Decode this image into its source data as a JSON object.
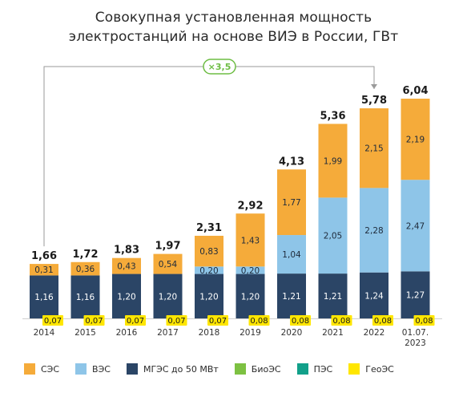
{
  "chart_data": {
    "type": "bar",
    "stacked": true,
    "title": [
      "Совокупная установленная мощность",
      "электростанций на основе ВИЭ в России, ГВт"
    ],
    "categories": [
      [
        "2014"
      ],
      [
        "2015"
      ],
      [
        "2016"
      ],
      [
        "2017"
      ],
      [
        "2018"
      ],
      [
        "2019"
      ],
      [
        "2020"
      ],
      [
        "2021"
      ],
      [
        "2022"
      ],
      [
        "01.07.",
        "2023"
      ]
    ],
    "totals": [
      "1,66",
      "1,72",
      "1,83",
      "1,97",
      "2,31",
      "2,92",
      "4,13",
      "5,36",
      "5,78",
      "6,04"
    ],
    "total_values": [
      1.66,
      1.72,
      1.83,
      1.97,
      2.31,
      2.92,
      4.13,
      5.36,
      5.78,
      6.04
    ],
    "series": [
      {
        "name": "ГеоЭС",
        "color": "#ffe600",
        "values": [
          0.07,
          0.07,
          0.07,
          0.07,
          0.07,
          0.08,
          0.08,
          0.08,
          0.08,
          0.08
        ],
        "labels": [
          "0,07",
          "0,07",
          "0,07",
          "0,07",
          "0,07",
          "0,08",
          "0,08",
          "0,08",
          "0,08",
          "0,08"
        ]
      },
      {
        "name": "МГЭС до 50 МВт",
        "color": "#2b4566",
        "values": [
          1.16,
          1.16,
          1.2,
          1.2,
          1.2,
          1.2,
          1.21,
          1.21,
          1.24,
          1.27
        ],
        "labels": [
          "1,16",
          "1,16",
          "1,20",
          "1,20",
          "1,20",
          "1,20",
          "1,21",
          "1,21",
          "1,24",
          "1,27"
        ]
      },
      {
        "name": "ВЭС",
        "color": "#8ec5e8",
        "values": [
          0,
          0,
          0,
          0,
          0.2,
          0.2,
          1.04,
          2.05,
          2.28,
          2.47
        ],
        "labels": [
          "",
          "",
          "",
          "",
          "0,20",
          "0,20",
          "1,04",
          "2,05",
          "2,28",
          "2,47"
        ]
      },
      {
        "name": "СЭС",
        "color": "#f5ab3a",
        "values": [
          0.31,
          0.36,
          0.43,
          0.54,
          0.83,
          1.43,
          1.77,
          1.99,
          2.15,
          2.19
        ],
        "labels": [
          "0,31",
          "0,36",
          "0,43",
          "0,54",
          "0,83",
          "1,43",
          "1,77",
          "1,99",
          "2,15",
          "2,19"
        ]
      }
    ],
    "annotation": {
      "text": "×3,5",
      "from_index": 0,
      "to_index": 8
    },
    "legend": [
      {
        "name": "СЭС",
        "color": "#f5ab3a"
      },
      {
        "name": "ВЭС",
        "color": "#8ec5e8"
      },
      {
        "name": "МГЭС до 50 МВт",
        "color": "#2b4566"
      },
      {
        "name": "БиоЭС",
        "color": "#7dc142"
      },
      {
        "name": "ПЭС",
        "color": "#12a08a"
      },
      {
        "name": "ГеоЭС",
        "color": "#ffe600"
      }
    ],
    "legend_position": "bottom",
    "grid": false,
    "ylim": [
      0,
      6.5
    ]
  }
}
